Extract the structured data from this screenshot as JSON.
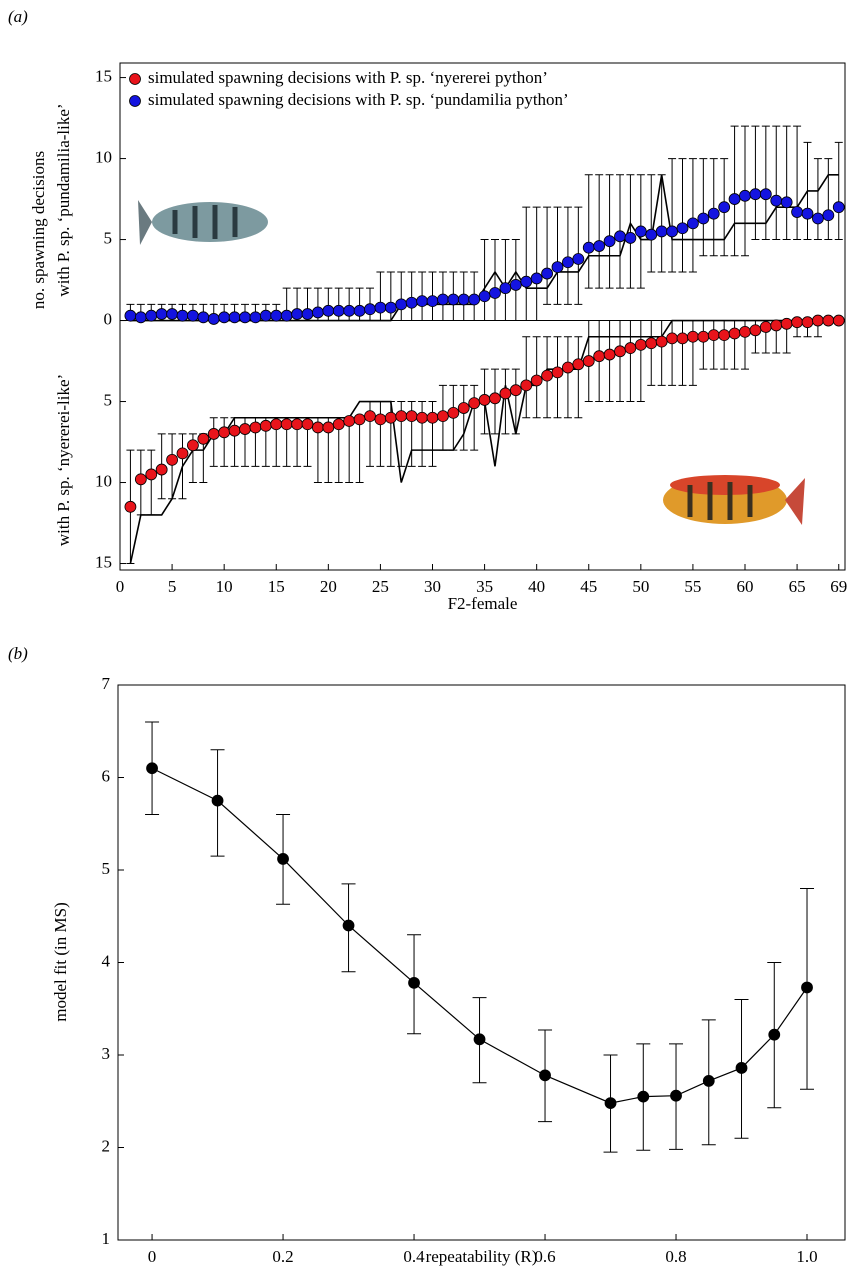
{
  "chart_data": [
    {
      "type": "errorbar",
      "panel_label": "(a)",
      "xlabel": "F2-female",
      "ylabel": [
        "no. spawning decisions",
        "with P. sp. ‘pundamilia-like’",
        "with P. sp. ‘nyererei-like’"
      ],
      "legend": "upper left",
      "zero_line": true,
      "xlim": [
        0,
        69.6
      ],
      "xticks": [
        0,
        5,
        10,
        15,
        20,
        25,
        30,
        35,
        40,
        45,
        50,
        55,
        60,
        65,
        69
      ],
      "ylim": [
        -15.4,
        15.9
      ],
      "yticks": [
        {
          "value": -15,
          "label": "15"
        },
        {
          "value": -10,
          "label": "10"
        },
        {
          "value": -5,
          "label": "5"
        },
        0,
        5,
        10,
        15
      ],
      "x": [
        1,
        2,
        3,
        4,
        5,
        6,
        7,
        8,
        9,
        10,
        11,
        12,
        13,
        14,
        15,
        16,
        17,
        18,
        19,
        20,
        21,
        22,
        23,
        24,
        25,
        26,
        27,
        28,
        29,
        30,
        31,
        32,
        33,
        34,
        35,
        36,
        37,
        38,
        39,
        40,
        41,
        42,
        43,
        44,
        45,
        46,
        47,
        48,
        49,
        50,
        51,
        52,
        53,
        54,
        55,
        56,
        57,
        58,
        59,
        60,
        61,
        62,
        63,
        64,
        65,
        66,
        67,
        68,
        69
      ],
      "series": [
        {
          "name": "simulated spawning decisions with P. sp. ‘nyererei python’",
          "color": "#e8141b",
          "line_color": "#000000",
          "values": [
            -11.5,
            -9.8,
            -9.5,
            -9.2,
            -8.6,
            -8.2,
            -7.7,
            -7.3,
            -7.0,
            -6.9,
            -6.8,
            -6.7,
            -6.6,
            -6.5,
            -6.4,
            -6.4,
            -6.4,
            -6.4,
            -6.6,
            -6.6,
            -6.4,
            -6.2,
            -6.1,
            -5.9,
            -6.1,
            -6.0,
            -5.9,
            -5.9,
            -6.0,
            -6.0,
            -5.9,
            -5.7,
            -5.4,
            -5.1,
            -4.9,
            -4.8,
            -4.5,
            -4.3,
            -4.0,
            -3.7,
            -3.4,
            -3.2,
            -2.9,
            -2.7,
            -2.5,
            -2.2,
            -2.1,
            -1.9,
            -1.7,
            -1.5,
            -1.4,
            -1.3,
            -1.1,
            -1.1,
            -1.0,
            -1.0,
            -0.9,
            -0.9,
            -0.8,
            -0.7,
            -0.6,
            -0.4,
            -0.3,
            -0.2,
            -0.1,
            -0.1,
            0,
            0,
            0
          ],
          "lower": [
            -15,
            -12,
            -12,
            -11,
            -11,
            -11,
            -10,
            -10,
            -9,
            -9,
            -9,
            -9,
            -9,
            -9,
            -9,
            -9,
            -9,
            -9,
            -10,
            -10,
            -10,
            -10,
            -10,
            -9,
            -9,
            -9,
            -9,
            -9,
            -9,
            -9,
            -8,
            -8,
            -8,
            -8,
            -7,
            -7,
            -7,
            -7,
            -6,
            -6,
            -6,
            -6,
            -6,
            -6,
            -5,
            -5,
            -5,
            -5,
            -5,
            -5,
            -4,
            -4,
            -4,
            -4,
            -4,
            -3,
            -3,
            -3,
            -3,
            -3,
            -2,
            -2,
            -2,
            -2,
            -1,
            -1,
            -1,
            0,
            0
          ],
          "upper": [
            -8,
            -8,
            -8,
            -7,
            -7,
            -7,
            -7,
            -7,
            -6,
            -6,
            -6,
            -6,
            -6,
            -6,
            -6,
            -6,
            -6,
            -6,
            -6,
            -6,
            -6,
            -6,
            -6,
            -5,
            -5,
            -5,
            -5,
            -5,
            -5,
            -5,
            -4,
            -4,
            -4,
            -4,
            -3,
            -3,
            -3,
            -3,
            -1,
            -1,
            -1,
            -1,
            -1,
            -1,
            0,
            0,
            0,
            0,
            0,
            0,
            0,
            0,
            0,
            0,
            0,
            0,
            0,
            0,
            0,
            0,
            0,
            0,
            0,
            0,
            0,
            0,
            0,
            0,
            0
          ],
          "observed": [
            -15,
            -12,
            -12,
            -12,
            -11,
            -9,
            -8,
            -8,
            -7,
            -7,
            -6,
            -6,
            -6,
            -6,
            -6,
            -6,
            -6,
            -6,
            -6,
            -6,
            -6,
            -6,
            -5,
            -5,
            -5,
            -5,
            -10,
            -8,
            -8,
            -8,
            -8,
            -8,
            -7,
            -5,
            -5,
            -9,
            -4,
            -7,
            -4,
            -4,
            -3,
            -3,
            -3,
            -3,
            -1,
            -1,
            -1,
            -1,
            -1,
            -1,
            -1,
            -1,
            0,
            0,
            0,
            0,
            0,
            0,
            0,
            0,
            0,
            0,
            0,
            0,
            0,
            0,
            0,
            0,
            0
          ]
        },
        {
          "name": "simulated spawning decisions with P. sp. ‘pundamilia python’",
          "color": "#1414e0",
          "line_color": "#000000",
          "values": [
            0.3,
            0.2,
            0.3,
            0.4,
            0.4,
            0.3,
            0.3,
            0.2,
            0.1,
            0.2,
            0.2,
            0.2,
            0.2,
            0.3,
            0.3,
            0.3,
            0.4,
            0.4,
            0.5,
            0.6,
            0.6,
            0.6,
            0.6,
            0.7,
            0.8,
            0.8,
            1.0,
            1.1,
            1.2,
            1.2,
            1.3,
            1.3,
            1.3,
            1.3,
            1.5,
            1.7,
            2.0,
            2.2,
            2.4,
            2.6,
            2.9,
            3.3,
            3.6,
            3.8,
            4.5,
            4.6,
            4.9,
            5.2,
            5.1,
            5.5,
            5.3,
            5.5,
            5.5,
            5.7,
            6.0,
            6.3,
            6.6,
            7.0,
            7.5,
            7.7,
            7.8,
            7.8,
            7.4,
            7.3,
            6.7,
            6.6,
            6.3,
            6.5,
            7.0
          ],
          "lower": [
            0,
            0,
            0,
            0,
            0,
            0,
            0,
            0,
            0,
            0,
            0,
            0,
            0,
            0,
            0,
            0,
            0,
            0,
            0,
            0,
            0,
            0,
            0,
            0,
            0,
            0,
            0,
            0,
            0,
            0,
            0,
            0,
            0,
            0,
            0,
            0,
            0,
            0,
            0,
            0,
            1,
            1,
            1,
            1,
            2,
            2,
            2,
            2,
            2,
            2,
            3,
            3,
            3,
            3,
            3,
            4,
            4,
            4,
            4,
            4,
            5,
            5,
            5,
            5,
            5,
            5,
            5,
            5,
            5
          ],
          "upper": [
            1,
            1,
            1,
            1,
            1,
            1,
            1,
            1,
            1,
            1,
            1,
            1,
            1,
            1,
            1,
            2,
            2,
            2,
            2,
            2,
            2,
            2,
            2,
            2,
            3,
            3,
            3,
            3,
            3,
            3,
            3,
            3,
            3,
            3,
            5,
            5,
            5,
            5,
            7,
            7,
            7,
            7,
            7,
            7,
            9,
            9,
            9,
            9,
            9,
            9,
            9,
            9,
            10,
            10,
            10,
            10,
            10,
            10,
            12,
            12,
            12,
            12,
            12,
            12,
            12,
            11,
            10,
            10,
            11
          ],
          "observed": [
            0,
            0,
            0,
            0,
            0,
            0,
            0,
            0,
            0,
            0,
            0,
            0,
            0,
            0,
            0,
            0,
            0,
            0,
            0,
            0,
            0,
            0,
            0,
            0,
            0,
            0,
            1,
            1,
            1,
            1,
            1,
            1,
            1,
            1,
            2,
            3,
            2,
            3,
            2,
            2,
            2,
            3,
            3,
            3,
            4,
            4,
            4,
            4,
            6,
            5,
            5,
            9,
            5,
            5,
            5,
            5,
            5,
            5,
            6,
            6,
            6,
            6,
            7,
            7,
            7,
            8,
            8,
            9,
            9
          ]
        }
      ]
    },
    {
      "type": "errorbar",
      "panel_label": "(b)",
      "xlabel": "repeatability (R)",
      "ylabel": [
        "model fit (in MS)"
      ],
      "xlim": [
        -0.052,
        1.058
      ],
      "xticks": [
        0,
        0.2,
        0.4,
        0.6,
        0.8,
        {
          "value": 1,
          "label": "1.0"
        }
      ],
      "ylim": [
        1,
        7
      ],
      "yticks": [
        1,
        2,
        3,
        4,
        5,
        6,
        7
      ],
      "connect": true,
      "x": [
        0,
        0.1,
        0.2,
        0.3,
        0.4,
        0.5,
        0.6,
        0.7,
        0.75,
        0.8,
        0.85,
        0.9,
        0.95,
        1.0
      ],
      "series": [
        {
          "color": "#000000",
          "values": [
            6.1,
            5.75,
            5.12,
            4.4,
            3.78,
            3.17,
            2.78,
            2.48,
            2.55,
            2.56,
            2.72,
            2.86,
            3.22,
            3.73
          ],
          "lower": [
            5.6,
            5.15,
            4.63,
            3.9,
            3.23,
            2.7,
            2.28,
            1.95,
            1.97,
            1.98,
            2.03,
            2.1,
            2.43,
            2.63
          ],
          "upper": [
            6.6,
            6.3,
            5.6,
            4.85,
            4.3,
            3.62,
            3.27,
            3.0,
            3.12,
            3.12,
            3.38,
            3.6,
            4.0,
            4.8
          ]
        }
      ]
    }
  ]
}
